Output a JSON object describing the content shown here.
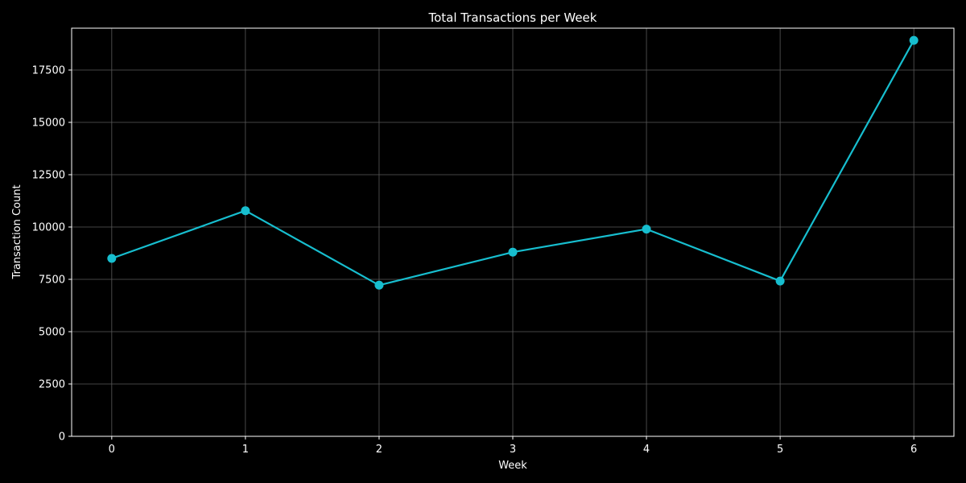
{
  "chart_data": {
    "type": "line",
    "title": "Total Transactions per Week",
    "xlabel": "Week",
    "ylabel": "Transaction Count",
    "x": [
      0,
      1,
      2,
      3,
      4,
      5,
      6
    ],
    "xlim": [
      -0.3,
      6.3
    ],
    "ylim": [
      0,
      19500
    ],
    "xticks": [
      0,
      1,
      2,
      3,
      4,
      5,
      6
    ],
    "yticks": [
      0,
      2500,
      5000,
      7500,
      10000,
      12500,
      15000,
      17500
    ],
    "grid": true,
    "legend": "none",
    "series": [
      {
        "color": "#17becf",
        "marker": "circle",
        "values": [
          8500,
          10780,
          7220,
          8800,
          9900,
          7420,
          18920
        ]
      }
    ]
  },
  "colors": {
    "background": "#000000",
    "foreground": "#ffffff",
    "grid": "#5a5a5a",
    "series": "#17becf"
  }
}
